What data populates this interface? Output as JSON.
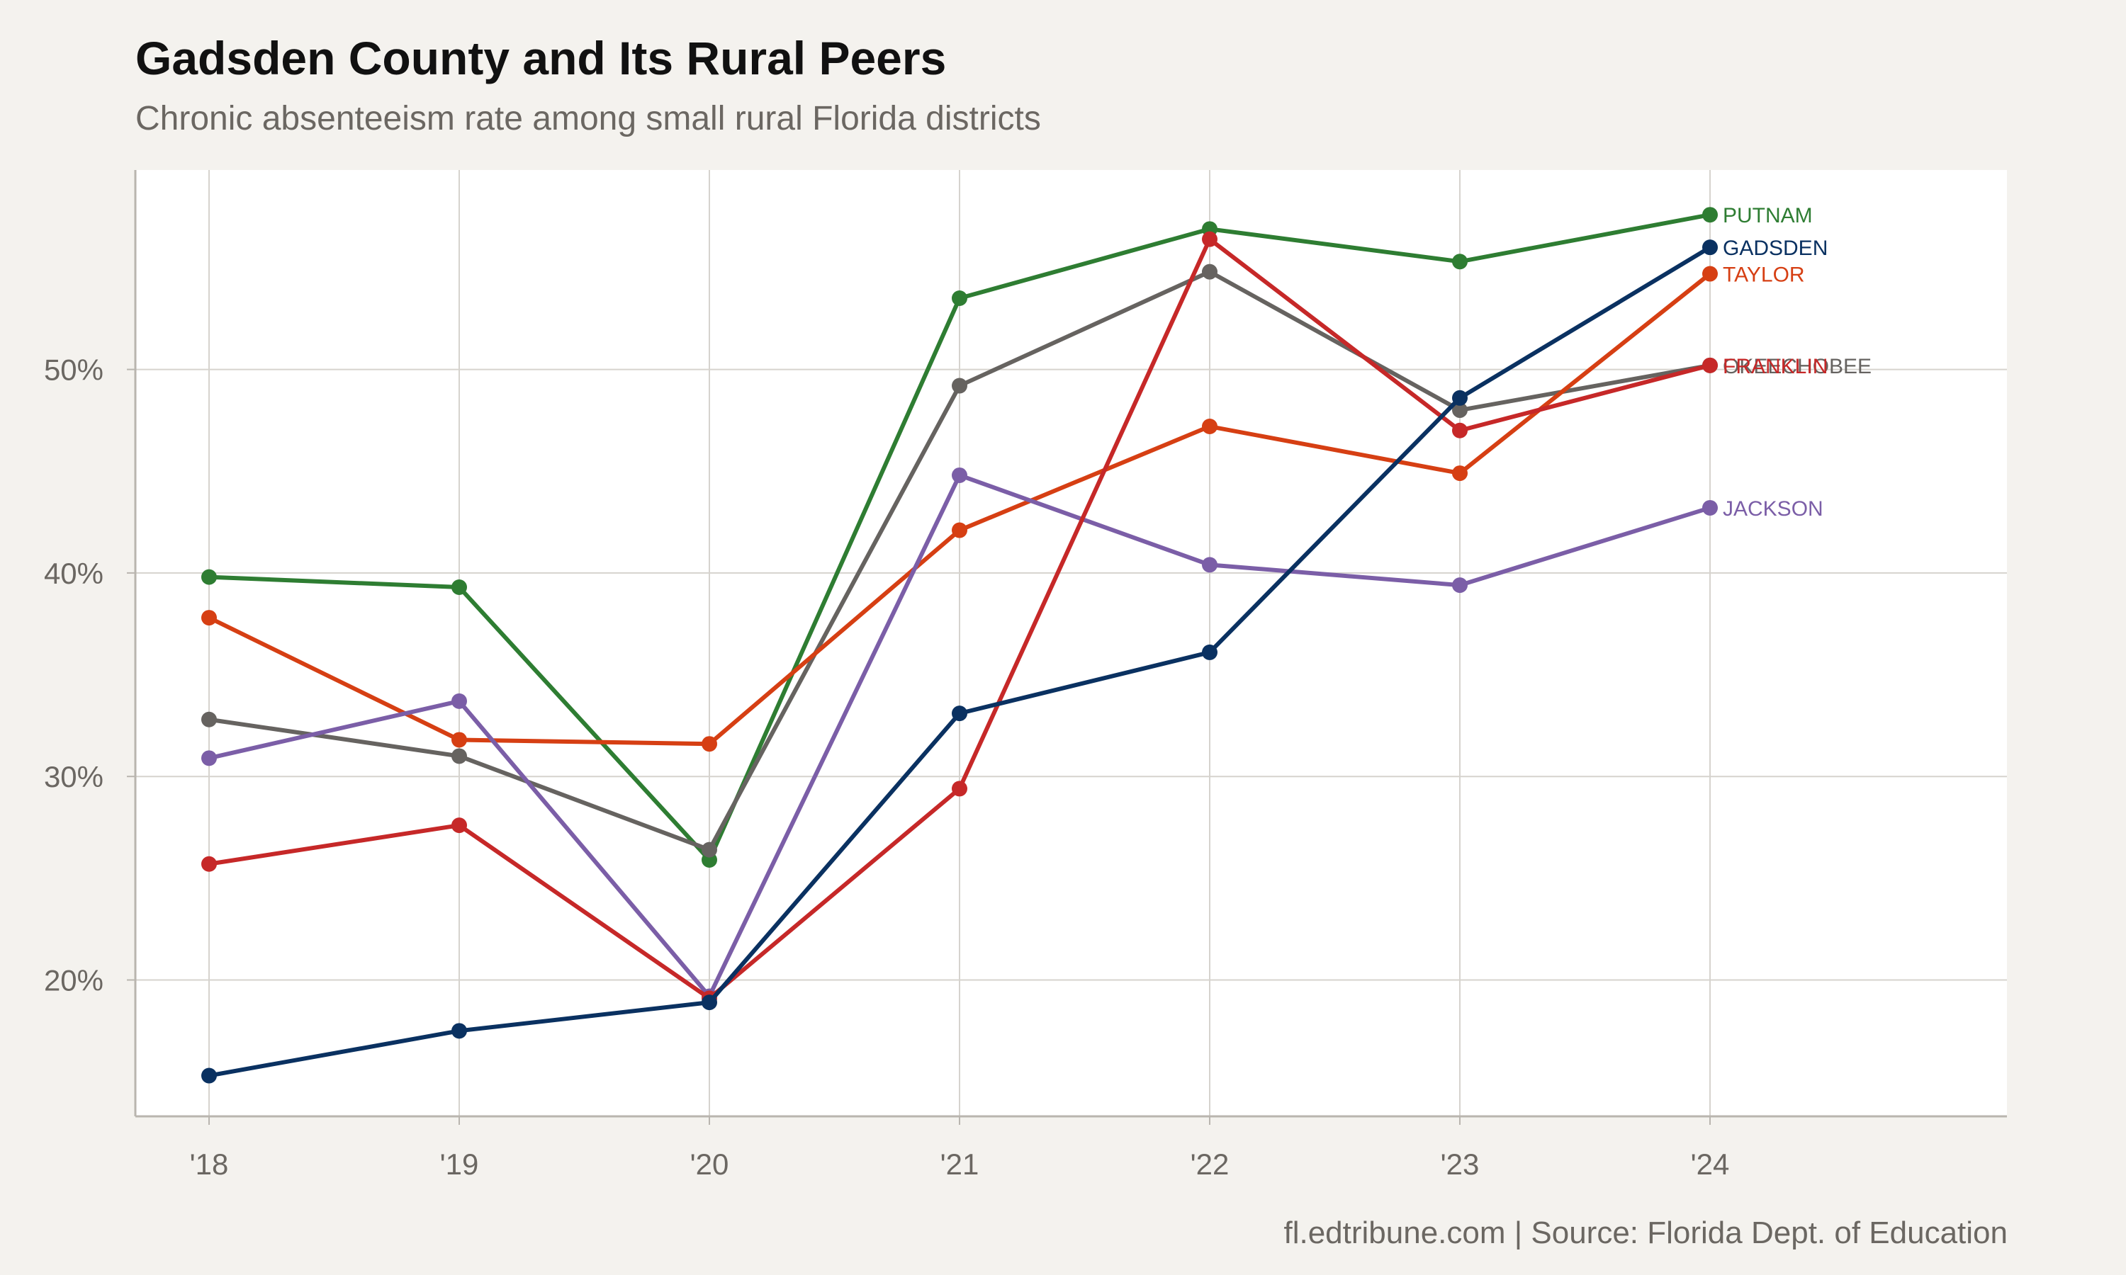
{
  "title": "Gadsden County and Its Rural Peers",
  "subtitle": "Chronic absenteeism rate among small rural Florida districts",
  "caption": "fl.edtribune.com | Source: Florida Dept. of Education",
  "chart_data": {
    "type": "line",
    "title": "Gadsden County and Its Rural Peers",
    "subtitle": "Chronic absenteeism rate among small rural Florida districts",
    "x": [
      "'18",
      "'19",
      "'20",
      "'21",
      "'22",
      "'23",
      "'24"
    ],
    "y_ticks": [
      "20%",
      "30%",
      "40%",
      "50%"
    ],
    "y_tick_values": [
      20,
      30,
      40,
      50
    ],
    "ylim": [
      13.3,
      59.8
    ],
    "y_unit": "percent",
    "grid": true,
    "legend": "direct labels at line ends",
    "series": [
      {
        "name": "PUTNAM",
        "color": "#2e7d32",
        "values": [
          39.8,
          39.3,
          25.9,
          53.5,
          56.9,
          55.3,
          57.6
        ]
      },
      {
        "name": "OKEECHOBEE",
        "color": "#666360",
        "values": [
          32.8,
          31.0,
          26.4,
          49.2,
          54.8,
          48.0,
          50.2
        ]
      },
      {
        "name": "TAYLOR",
        "color": "#d63f13",
        "values": [
          37.8,
          31.8,
          31.6,
          42.1,
          47.2,
          44.9,
          54.7
        ]
      },
      {
        "name": "JACKSON",
        "color": "#7b5ea7",
        "values": [
          30.9,
          33.7,
          19.2,
          44.8,
          40.4,
          39.4,
          43.2
        ]
      },
      {
        "name": "FRANKLIN",
        "color": "#c62828",
        "values": [
          25.7,
          27.6,
          19.1,
          29.4,
          56.4,
          47.0,
          50.2
        ]
      },
      {
        "name": "GADSDEN",
        "color": "#0a3161",
        "values": [
          15.3,
          17.5,
          18.9,
          33.1,
          36.1,
          48.6,
          56.0
        ]
      }
    ]
  }
}
